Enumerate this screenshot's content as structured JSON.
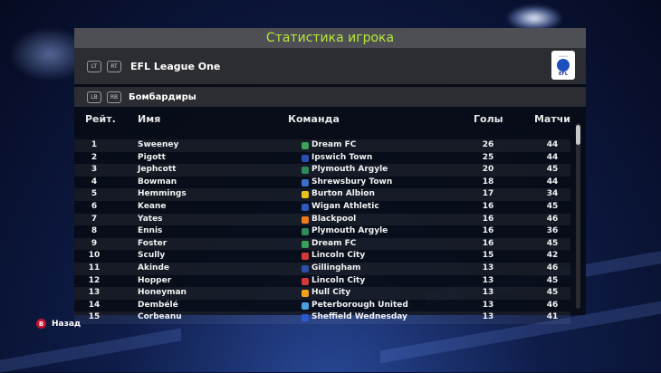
{
  "screen": {
    "title": "Статистика игрока",
    "accent": "#b7e83a"
  },
  "league": {
    "name": "EFL League One",
    "prev_button": "LT",
    "next_button": "RT",
    "logo_text": "EFL",
    "logo_icon": "efl-logo-icon"
  },
  "category": {
    "name": "Бомбардиры",
    "prev_button": "LB",
    "next_button": "RB"
  },
  "table": {
    "headers": {
      "rank": "Рейт.",
      "name": "Имя",
      "team": "Команда",
      "goals": "Голы",
      "matches": "Матчи"
    },
    "rows": [
      {
        "rank": "1",
        "name": "Sweeney",
        "team": "Dream FC",
        "goals": "26",
        "matches": "44",
        "crest_color": "#3aa05a"
      },
      {
        "rank": "2",
        "name": "Pigott",
        "team": "Ipswich Town",
        "goals": "25",
        "matches": "44",
        "crest_color": "#2b4fb0"
      },
      {
        "rank": "3",
        "name": "Jephcott",
        "team": "Plymouth Argyle",
        "goals": "20",
        "matches": "45",
        "crest_color": "#2f8a5a"
      },
      {
        "rank": "4",
        "name": "Bowman",
        "team": "Shrewsbury Town",
        "goals": "18",
        "matches": "44",
        "crest_color": "#3a6ec8"
      },
      {
        "rank": "5",
        "name": "Hemmings",
        "team": "Burton Albion",
        "goals": "17",
        "matches": "34",
        "crest_color": "#e8c21a"
      },
      {
        "rank": "6",
        "name": "Keane",
        "team": "Wigan Athletic",
        "goals": "16",
        "matches": "45",
        "crest_color": "#2d5ab8"
      },
      {
        "rank": "7",
        "name": "Yates",
        "team": "Blackpool",
        "goals": "16",
        "matches": "46",
        "crest_color": "#f07a1a"
      },
      {
        "rank": "8",
        "name": "Ennis",
        "team": "Plymouth Argyle",
        "goals": "16",
        "matches": "36",
        "crest_color": "#2f8a5a"
      },
      {
        "rank": "9",
        "name": "Foster",
        "team": "Dream FC",
        "goals": "16",
        "matches": "45",
        "crest_color": "#3aa05a"
      },
      {
        "rank": "10",
        "name": "Scully",
        "team": "Lincoln City",
        "goals": "15",
        "matches": "42",
        "crest_color": "#d23a3a"
      },
      {
        "rank": "11",
        "name": "Akinde",
        "team": "Gillingham",
        "goals": "13",
        "matches": "46",
        "crest_color": "#2f4fa8"
      },
      {
        "rank": "12",
        "name": "Hopper",
        "team": "Lincoln City",
        "goals": "13",
        "matches": "45",
        "crest_color": "#d23a3a"
      },
      {
        "rank": "13",
        "name": "Honeyman",
        "team": "Hull City",
        "goals": "13",
        "matches": "45",
        "crest_color": "#f0a21a"
      },
      {
        "rank": "14",
        "name": "Dembélé",
        "team": "Peterborough United",
        "goals": "13",
        "matches": "46",
        "crest_color": "#4aa0e0"
      },
      {
        "rank": "15",
        "name": "Corbeanu",
        "team": "Sheffield Wednesday",
        "goals": "13",
        "matches": "41",
        "crest_color": "#2a5ad0"
      }
    ]
  },
  "footer": {
    "back_button": "B",
    "back_label": "Назад"
  }
}
